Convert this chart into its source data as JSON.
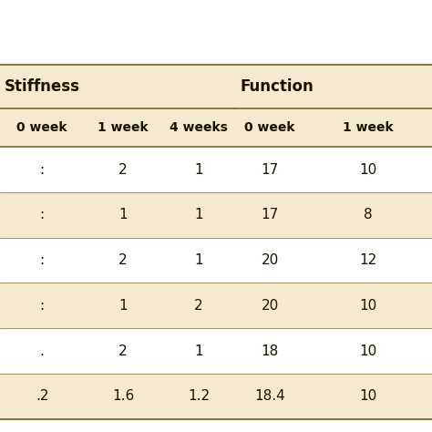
{
  "header_group1": "Stiffness",
  "header_group2": "Function",
  "rows": [
    [
      ":",
      "2",
      "1",
      "17",
      "10"
    ],
    [
      ":",
      "1",
      "1",
      "17",
      "8"
    ],
    [
      ":",
      "2",
      "1",
      "20",
      "12"
    ],
    [
      ":",
      "1",
      "2",
      "20",
      "10"
    ],
    [
      ".",
      "2",
      "1",
      "18",
      "10"
    ],
    [
      ".2",
      "1.6",
      "1.2",
      "18.4",
      "10"
    ]
  ],
  "col0_subheader": "0 week",
  "col1_subheader": "1 week",
  "col2_subheader": "4 weeks",
  "col3_subheader": "0 week",
  "col4_subheader": "1 week",
  "row_bg_colors": [
    "#ffffff",
    "#f5ead0",
    "#ffffff",
    "#f5ead0",
    "#ffffff",
    "#f5ead0"
  ],
  "header_bg_color": "#f5ead0",
  "top_bg_color": "#ffffff",
  "background_color": "#ffffff",
  "text_color": "#1a1200",
  "header_text_color": "#1a1200",
  "border_color": "#7a6a2a",
  "figsize": [
    4.74,
    4.74
  ],
  "dpi": 100
}
